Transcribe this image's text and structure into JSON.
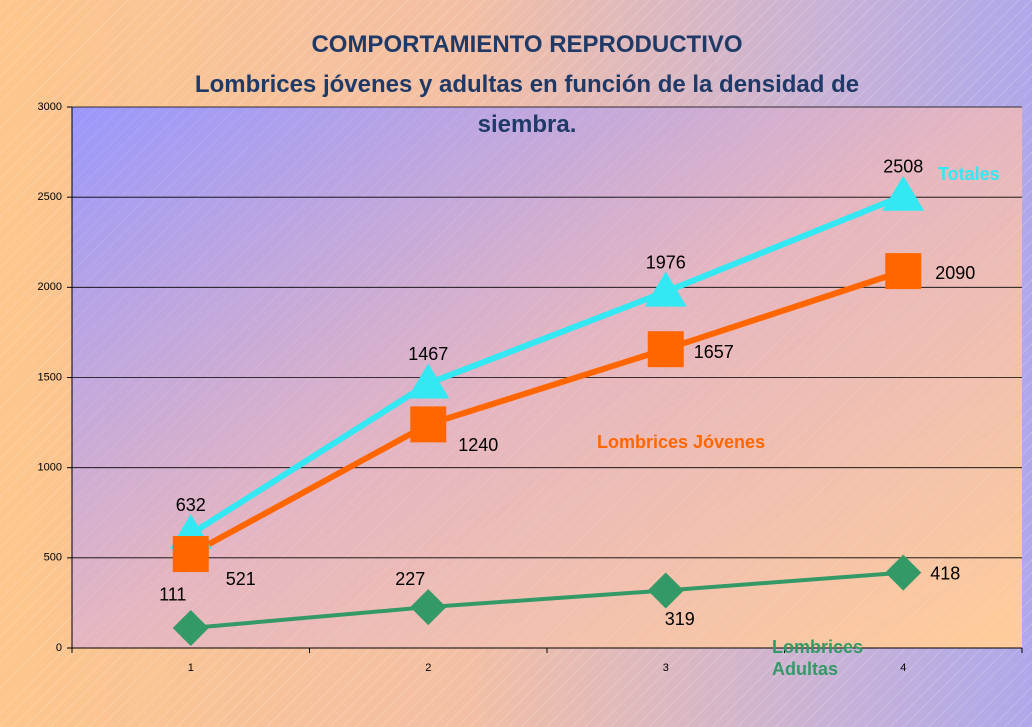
{
  "chart_data": {
    "type": "line",
    "title": "COMPORTAMIENTO REPRODUCTIVO",
    "subtitle": "Lombrices jóvenes y adultas en función de la densidad de siembra.",
    "categories": [
      1,
      2,
      3,
      4
    ],
    "series": [
      {
        "name": "Totales",
        "color": "#33e8f2",
        "marker": "triangle",
        "values": [
          632,
          1467,
          1976,
          2508
        ]
      },
      {
        "name": "Lombrices Jóvenes",
        "color": "#ff6600",
        "marker": "square",
        "values": [
          521,
          1240,
          1657,
          2090
        ]
      },
      {
        "name": "Lombrices Adultas",
        "color": "#339966",
        "marker": "diamond",
        "values": [
          111,
          227,
          319,
          418
        ]
      }
    ],
    "ylim": [
      0,
      3000
    ],
    "yticks": [
      0,
      500,
      1000,
      1500,
      2000,
      2500,
      3000
    ],
    "grid": true
  }
}
